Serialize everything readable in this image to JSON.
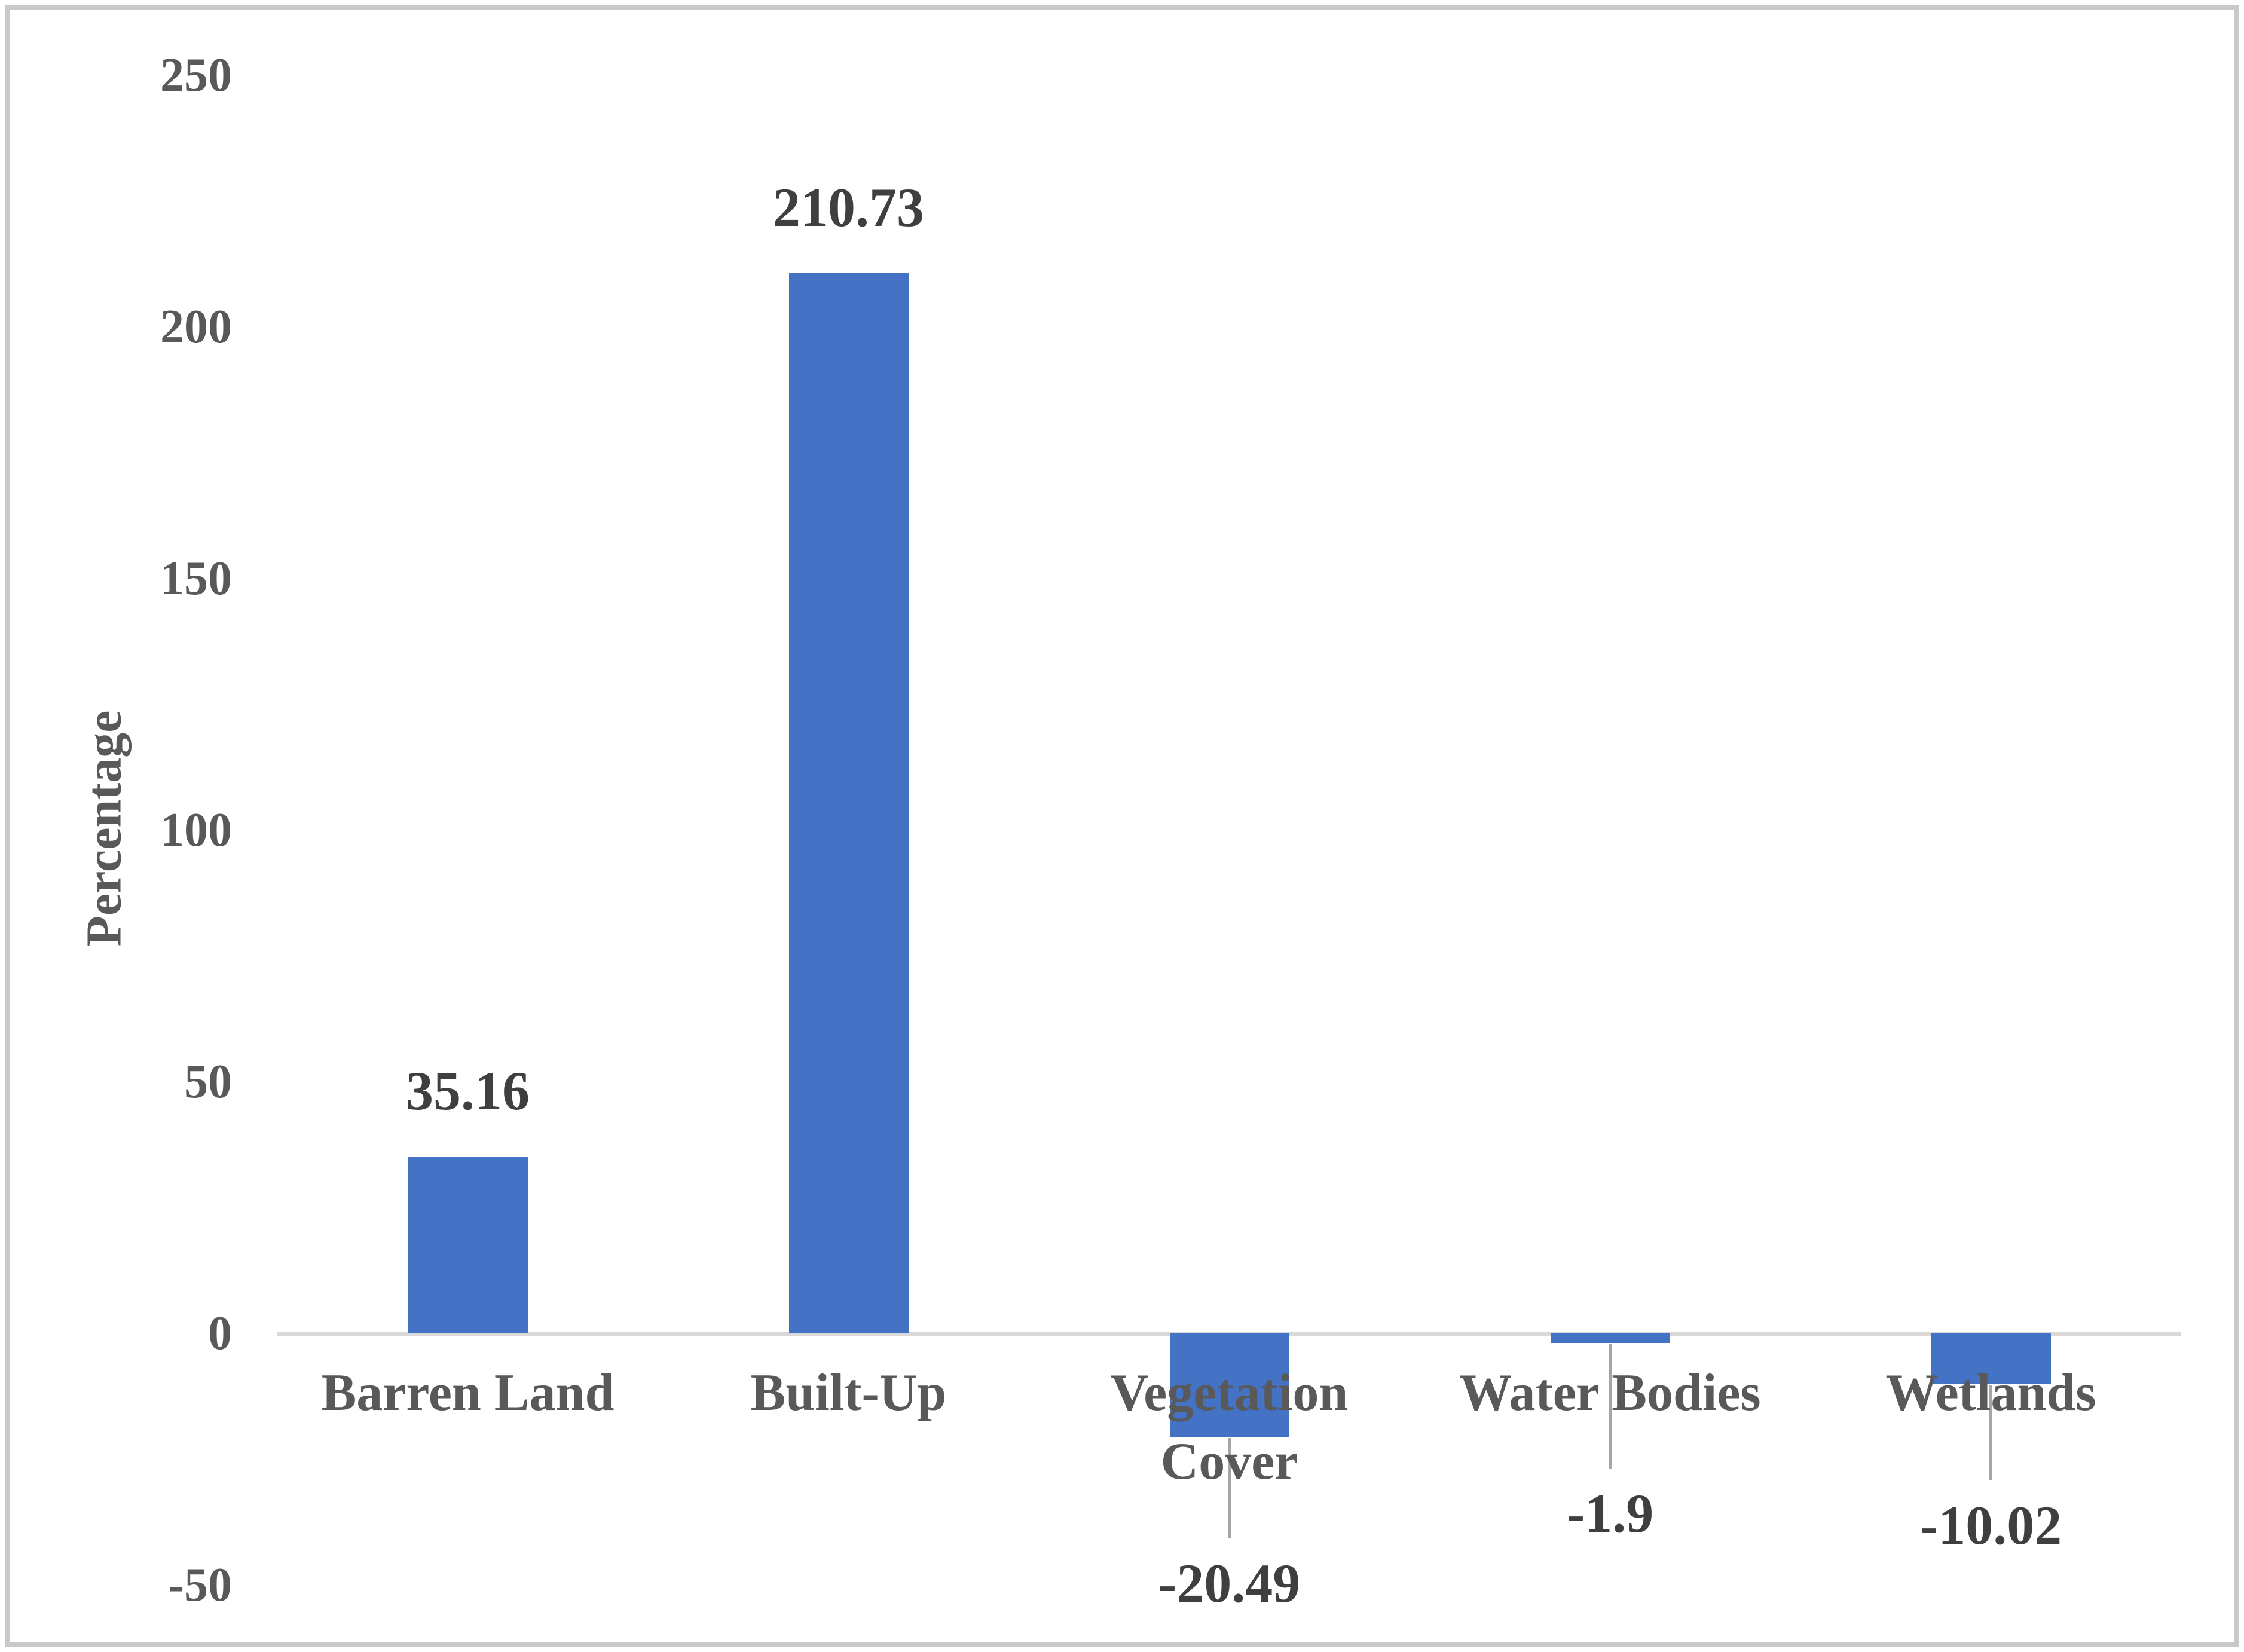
{
  "chart_data": {
    "type": "bar",
    "title": "",
    "xlabel": "",
    "ylabel": "Percentage",
    "categories": [
      "Barren Land",
      "Built-Up",
      "Vegetation Cover",
      "Water Bodies",
      "Wetlands"
    ],
    "values": [
      35.16,
      210.73,
      -20.49,
      -1.9,
      -10.02
    ],
    "data_labels": [
      "35.16",
      "210.73",
      "-20.49",
      "-1.9",
      "-10.02"
    ],
    "yticks": [
      250,
      200,
      150,
      100,
      50,
      0,
      -50
    ],
    "ylim": [
      -50,
      250
    ],
    "grid": false,
    "legend": false,
    "series_name": "",
    "colors": {
      "bar": "#4472c4",
      "axis_line": "#d9d9d9",
      "leader_line": "#a6a6a6",
      "tick_text": "#595959",
      "category_text": "#595959",
      "data_label_text": "#3f3f3f",
      "frame_border": "#c9c9c9",
      "background": "#ffffff"
    }
  }
}
